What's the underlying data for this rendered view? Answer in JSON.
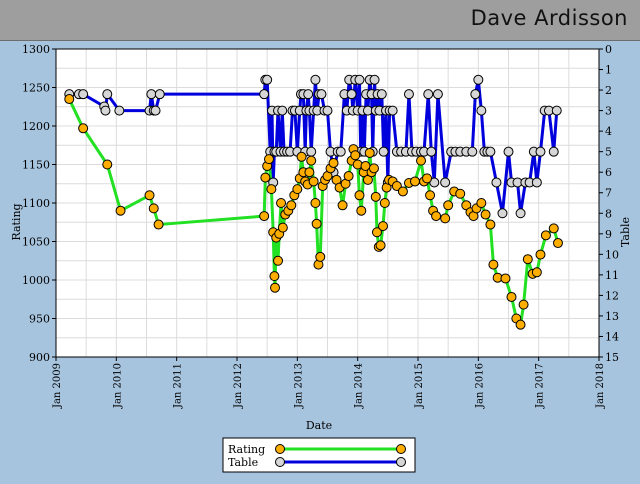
{
  "header": {
    "player_name": "Dave Ardisson"
  },
  "colors": {
    "page_bg": "#a7c4de",
    "header_bg": "#9e9e9e",
    "rating_line": "#22e022",
    "rating_marker": "#ffae00",
    "table_line": "#0000dd",
    "table_marker": "#d6d6d6",
    "grid": "#dcdcdc"
  },
  "chart_data": {
    "type": "line",
    "xlabel": "Date",
    "ylabel": "Rating",
    "y2label": "Table",
    "x_ticks": [
      "Jan 2009",
      "Jan 2010",
      "Jan 2011",
      "Jan 2012",
      "Jan 2013",
      "Jan 2014",
      "Jan 2015",
      "Jan 2016",
      "Jan 2017",
      "Jan 2018"
    ],
    "xlim": [
      2009.0,
      2018.0
    ],
    "ylim": [
      900,
      1300
    ],
    "yticks": [
      900,
      950,
      1000,
      1050,
      1100,
      1150,
      1200,
      1250,
      1300
    ],
    "y2lim": [
      0,
      15
    ],
    "y2_inverted": true,
    "y2ticks": [
      0,
      1,
      2,
      3,
      4,
      5,
      6,
      7,
      8,
      9,
      10,
      11,
      12,
      13,
      14,
      15
    ],
    "grid": true,
    "legend": "bottom-center",
    "series": [
      {
        "name": "Rating",
        "axis": "left",
        "points": [
          [
            2009.22,
            1235
          ],
          [
            2009.45,
            1197
          ],
          [
            2009.85,
            1150
          ],
          [
            2010.07,
            1090
          ],
          [
            2010.55,
            1110
          ],
          [
            2010.62,
            1093
          ],
          [
            2010.7,
            1072
          ],
          [
            2012.45,
            1083
          ],
          [
            2012.47,
            1133
          ],
          [
            2012.5,
            1148
          ],
          [
            2012.53,
            1157
          ],
          [
            2012.57,
            1118
          ],
          [
            2012.6,
            1062
          ],
          [
            2012.62,
            1005
          ],
          [
            2012.63,
            990
          ],
          [
            2012.65,
            1055
          ],
          [
            2012.68,
            1025
          ],
          [
            2012.7,
            1060
          ],
          [
            2012.73,
            1100
          ],
          [
            2012.76,
            1068
          ],
          [
            2012.8,
            1085
          ],
          [
            2012.85,
            1090
          ],
          [
            2012.9,
            1097
          ],
          [
            2012.95,
            1110
          ],
          [
            2013.0,
            1118
          ],
          [
            2013.04,
            1132
          ],
          [
            2013.07,
            1160
          ],
          [
            2013.1,
            1140
          ],
          [
            2013.13,
            1128
          ],
          [
            2013.17,
            1124
          ],
          [
            2013.2,
            1140
          ],
          [
            2013.23,
            1155
          ],
          [
            2013.27,
            1128
          ],
          [
            2013.3,
            1100
          ],
          [
            2013.32,
            1073
          ],
          [
            2013.35,
            1020
          ],
          [
            2013.38,
            1030
          ],
          [
            2013.42,
            1122
          ],
          [
            2013.46,
            1130
          ],
          [
            2013.5,
            1135
          ],
          [
            2013.55,
            1145
          ],
          [
            2013.6,
            1152
          ],
          [
            2013.65,
            1130
          ],
          [
            2013.7,
            1120
          ],
          [
            2013.75,
            1097
          ],
          [
            2013.8,
            1125
          ],
          [
            2013.85,
            1135
          ],
          [
            2013.9,
            1155
          ],
          [
            2013.93,
            1170
          ],
          [
            2013.96,
            1162
          ],
          [
            2014.0,
            1150
          ],
          [
            2014.03,
            1110
          ],
          [
            2014.06,
            1090
          ],
          [
            2014.1,
            1140
          ],
          [
            2014.13,
            1148
          ],
          [
            2014.17,
            1130
          ],
          [
            2014.2,
            1165
          ],
          [
            2014.23,
            1140
          ],
          [
            2014.27,
            1145
          ],
          [
            2014.3,
            1108
          ],
          [
            2014.32,
            1062
          ],
          [
            2014.35,
            1043
          ],
          [
            2014.38,
            1045
          ],
          [
            2014.42,
            1070
          ],
          [
            2014.45,
            1100
          ],
          [
            2014.48,
            1120
          ],
          [
            2014.52,
            1130
          ],
          [
            2014.58,
            1128
          ],
          [
            2014.65,
            1122
          ],
          [
            2014.75,
            1115
          ],
          [
            2014.85,
            1126
          ],
          [
            2014.95,
            1128
          ],
          [
            2015.05,
            1155
          ],
          [
            2015.1,
            1128
          ],
          [
            2015.15,
            1132
          ],
          [
            2015.2,
            1110
          ],
          [
            2015.25,
            1090
          ],
          [
            2015.3,
            1083
          ],
          [
            2015.45,
            1080
          ],
          [
            2015.5,
            1097
          ],
          [
            2015.6,
            1115
          ],
          [
            2015.7,
            1112
          ],
          [
            2015.8,
            1097
          ],
          [
            2015.87,
            1088
          ],
          [
            2015.92,
            1083
          ],
          [
            2015.97,
            1093
          ],
          [
            2016.05,
            1100
          ],
          [
            2016.12,
            1085
          ],
          [
            2016.2,
            1072
          ],
          [
            2016.25,
            1020
          ],
          [
            2016.32,
            1003
          ],
          [
            2016.45,
            1002
          ],
          [
            2016.55,
            978
          ],
          [
            2016.63,
            950
          ],
          [
            2016.7,
            942
          ],
          [
            2016.75,
            968
          ],
          [
            2016.82,
            1027
          ],
          [
            2016.9,
            1008
          ],
          [
            2016.97,
            1010
          ],
          [
            2017.03,
            1033
          ],
          [
            2017.12,
            1058
          ],
          [
            2017.25,
            1067
          ],
          [
            2017.32,
            1048
          ]
        ]
      },
      {
        "name": "Table",
        "axis": "right",
        "points": [
          [
            2009.22,
            2.2
          ],
          [
            2009.38,
            2.2
          ],
          [
            2009.45,
            2.2
          ],
          [
            2009.8,
            2.8
          ],
          [
            2009.82,
            3.0
          ],
          [
            2009.85,
            2.2
          ],
          [
            2010.05,
            3.0
          ],
          [
            2010.55,
            3.0
          ],
          [
            2010.58,
            2.2
          ],
          [
            2010.62,
            3.0
          ],
          [
            2010.65,
            3.0
          ],
          [
            2010.72,
            2.2
          ],
          [
            2012.45,
            2.2
          ],
          [
            2012.47,
            1.5
          ],
          [
            2012.5,
            1.5
          ],
          [
            2012.55,
            5.0
          ],
          [
            2012.58,
            3.0
          ],
          [
            2012.6,
            6.5
          ],
          [
            2012.62,
            5.0
          ],
          [
            2012.65,
            5.0
          ],
          [
            2012.68,
            3.0
          ],
          [
            2012.72,
            5.0
          ],
          [
            2012.75,
            3.0
          ],
          [
            2012.78,
            5.0
          ],
          [
            2012.83,
            5.0
          ],
          [
            2012.88,
            5.0
          ],
          [
            2012.92,
            3.0
          ],
          [
            2012.96,
            3.0
          ],
          [
            2013.0,
            5.0
          ],
          [
            2013.04,
            3.0
          ],
          [
            2013.06,
            2.2
          ],
          [
            2013.1,
            2.2
          ],
          [
            2013.13,
            5.0
          ],
          [
            2013.15,
            3.0
          ],
          [
            2013.18,
            2.2
          ],
          [
            2013.2,
            3.0
          ],
          [
            2013.23,
            5.0
          ],
          [
            2013.27,
            3.0
          ],
          [
            2013.3,
            1.5
          ],
          [
            2013.33,
            3.0
          ],
          [
            2013.36,
            2.2
          ],
          [
            2013.4,
            2.2
          ],
          [
            2013.45,
            3.0
          ],
          [
            2013.5,
            3.0
          ],
          [
            2013.55,
            5.0
          ],
          [
            2013.6,
            6.0
          ],
          [
            2013.67,
            5.0
          ],
          [
            2013.72,
            5.0
          ],
          [
            2013.78,
            2.2
          ],
          [
            2013.82,
            3.0
          ],
          [
            2013.86,
            1.5
          ],
          [
            2013.9,
            2.2
          ],
          [
            2013.92,
            3.0
          ],
          [
            2013.96,
            1.5
          ],
          [
            2014.0,
            3.0
          ],
          [
            2014.03,
            1.5
          ],
          [
            2014.05,
            5.0
          ],
          [
            2014.08,
            3.0
          ],
          [
            2014.11,
            5.0
          ],
          [
            2014.14,
            2.2
          ],
          [
            2014.17,
            3.0
          ],
          [
            2014.2,
            1.5
          ],
          [
            2014.23,
            2.2
          ],
          [
            2014.25,
            5.0
          ],
          [
            2014.28,
            1.5
          ],
          [
            2014.3,
            3.0
          ],
          [
            2014.33,
            2.2
          ],
          [
            2014.36,
            3.0
          ],
          [
            2014.4,
            2.2
          ],
          [
            2014.43,
            5.0
          ],
          [
            2014.47,
            3.0
          ],
          [
            2014.5,
            6.5
          ],
          [
            2014.53,
            3.0
          ],
          [
            2014.58,
            3.0
          ],
          [
            2014.65,
            5.0
          ],
          [
            2014.72,
            5.0
          ],
          [
            2014.8,
            5.0
          ],
          [
            2014.85,
            2.2
          ],
          [
            2014.9,
            5.0
          ],
          [
            2014.97,
            5.0
          ],
          [
            2015.05,
            5.0
          ],
          [
            2015.1,
            5.0
          ],
          [
            2015.17,
            2.2
          ],
          [
            2015.22,
            5.0
          ],
          [
            2015.27,
            6.5
          ],
          [
            2015.33,
            2.2
          ],
          [
            2015.45,
            6.5
          ],
          [
            2015.55,
            5.0
          ],
          [
            2015.62,
            5.0
          ],
          [
            2015.7,
            5.0
          ],
          [
            2015.8,
            5.0
          ],
          [
            2015.9,
            5.0
          ],
          [
            2015.95,
            2.2
          ],
          [
            2016.0,
            1.5
          ],
          [
            2016.05,
            3.0
          ],
          [
            2016.1,
            5.0
          ],
          [
            2016.15,
            5.0
          ],
          [
            2016.2,
            5.0
          ],
          [
            2016.3,
            6.5
          ],
          [
            2016.4,
            8.0
          ],
          [
            2016.5,
            5.0
          ],
          [
            2016.55,
            6.5
          ],
          [
            2016.65,
            6.5
          ],
          [
            2016.7,
            8.0
          ],
          [
            2016.78,
            6.5
          ],
          [
            2016.85,
            6.5
          ],
          [
            2016.92,
            5.0
          ],
          [
            2016.97,
            6.5
          ],
          [
            2017.03,
            5.0
          ],
          [
            2017.1,
            3.0
          ],
          [
            2017.17,
            3.0
          ],
          [
            2017.25,
            5.0
          ],
          [
            2017.3,
            3.0
          ]
        ]
      }
    ]
  }
}
